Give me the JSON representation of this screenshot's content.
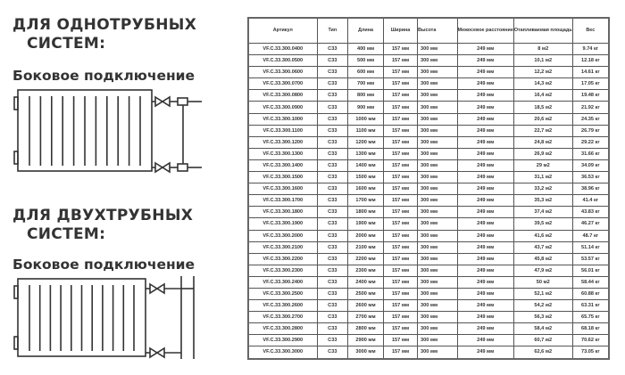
{
  "left": {
    "single_pipe": {
      "title_line1": "ДЛЯ ОДНОТРУБНЫХ",
      "title_line2": "СИСТЕМ:",
      "connection": "Боковое подключение"
    },
    "two_pipe": {
      "title_line1": "ДЛЯ ДВУХТРУБНЫХ",
      "title_line2": "СИСТЕМ:",
      "connection": "Боковое подключение"
    }
  },
  "table": {
    "headers": [
      "Артикул",
      "Тип",
      "Длина",
      "Ширина",
      "Высота",
      "Межосевое расстояние",
      "Отапливаемая площадь",
      "Вес"
    ],
    "rows": [
      [
        "VF.C.33.300.0400",
        "C33",
        "400 мм",
        "157 мм",
        "300 мм",
        "249 мм",
        "8 м2",
        "9.74 кг"
      ],
      [
        "VF.C.33.300.0500",
        "C33",
        "500 мм",
        "157 мм",
        "300 мм",
        "249 мм",
        "10,1 м2",
        "12.18 кг"
      ],
      [
        "VF.C.33.300.0600",
        "C33",
        "600 мм",
        "157 мм",
        "300 мм",
        "249 мм",
        "12,2 м2",
        "14.61 кг"
      ],
      [
        "VF.C.33.300.0700",
        "C33",
        "700 мм",
        "157 мм",
        "300 мм",
        "249 мм",
        "14,3 м2",
        "17.05 кг"
      ],
      [
        "VF.C.33.300.0800",
        "C33",
        "800 мм",
        "157 мм",
        "300 мм",
        "249 мм",
        "16,4 м2",
        "19.48 кг"
      ],
      [
        "VF.C.33.300.0900",
        "C33",
        "900 мм",
        "157 мм",
        "300 мм",
        "249 мм",
        "18,5 м2",
        "21.92 кг"
      ],
      [
        "VF.C.33.300.1000",
        "C33",
        "1000 мм",
        "157 мм",
        "300 мм",
        "249 мм",
        "20,6 м2",
        "24.35 кг"
      ],
      [
        "VF.C.33.300.1100",
        "C33",
        "1100 мм",
        "157 мм",
        "300 мм",
        "249 мм",
        "22,7 м2",
        "26.79 кг"
      ],
      [
        "VF.C.33.300.1200",
        "C33",
        "1200 мм",
        "157 мм",
        "300 мм",
        "249 мм",
        "24,8 м2",
        "29.22 кг"
      ],
      [
        "VF.C.33.300.1300",
        "C33",
        "1300 мм",
        "157 мм",
        "300 мм",
        "249 мм",
        "26,9 м2",
        "31.66 кг"
      ],
      [
        "VF.C.33.300.1400",
        "C33",
        "1400 мм",
        "157 мм",
        "300 мм",
        "249 мм",
        "29 м2",
        "34.09 кг"
      ],
      [
        "VF.C.33.300.1500",
        "C33",
        "1500 мм",
        "157 мм",
        "300 мм",
        "249 мм",
        "31,1 м2",
        "36.53 кг"
      ],
      [
        "VF.C.33.300.1600",
        "C33",
        "1600 мм",
        "157 мм",
        "300 мм",
        "249 мм",
        "33,2 м2",
        "38.96 кг"
      ],
      [
        "VF.C.33.300.1700",
        "C33",
        "1700 мм",
        "157 мм",
        "300 мм",
        "249 мм",
        "35,3 м2",
        "41.4 кг"
      ],
      [
        "VF.C.33.300.1800",
        "C33",
        "1800 мм",
        "157 мм",
        "300 мм",
        "249 мм",
        "37,4 м2",
        "43.83 кг"
      ],
      [
        "VF.C.33.300.1900",
        "C33",
        "1900 мм",
        "157 мм",
        "300 мм",
        "249 мм",
        "39,5 м2",
        "46.27 кг"
      ],
      [
        "VF.C.33.300.2000",
        "C33",
        "2000 мм",
        "157 мм",
        "300 мм",
        "249 мм",
        "41,6 м2",
        "48.7 кг"
      ],
      [
        "VF.C.33.300.2100",
        "C33",
        "2100 мм",
        "157 мм",
        "300 мм",
        "249 мм",
        "43,7 м2",
        "51.14 кг"
      ],
      [
        "VF.C.33.300.2200",
        "C33",
        "2200 мм",
        "157 мм",
        "300 мм",
        "249 мм",
        "45,8 м2",
        "53.57 кг"
      ],
      [
        "VF.C.33.300.2300",
        "C33",
        "2300 мм",
        "157 мм",
        "300 мм",
        "249 мм",
        "47,9 м2",
        "56.01 кг"
      ],
      [
        "VF.C.33.300.2400",
        "C33",
        "2400 мм",
        "157 мм",
        "300 мм",
        "249 мм",
        "50 м2",
        "58.44 кг"
      ],
      [
        "VF.C.33.300.2500",
        "C33",
        "2500 мм",
        "157 мм",
        "300 мм",
        "249 мм",
        "52,1 м2",
        "60.88 кг"
      ],
      [
        "VF.C.33.300.2600",
        "C33",
        "2600 мм",
        "157 мм",
        "300 мм",
        "249 мм",
        "54,2 м2",
        "63.31 кг"
      ],
      [
        "VF.C.33.300.2700",
        "C33",
        "2700 мм",
        "157 мм",
        "300 мм",
        "249 мм",
        "56,3 м2",
        "65.75 кг"
      ],
      [
        "VF.C.33.300.2800",
        "C33",
        "2800 мм",
        "157 мм",
        "300 мм",
        "249 мм",
        "58,4 м2",
        "68.18 кг"
      ],
      [
        "VF.C.33.300.2900",
        "C33",
        "2900 мм",
        "157 мм",
        "300 мм",
        "249 мм",
        "60,7 м2",
        "70.62 кг"
      ],
      [
        "VF.C.33.300.3000",
        "C33",
        "3000 мм",
        "157 мм",
        "300 мм",
        "249 мм",
        "62,6 м2",
        "73.05 кг"
      ]
    ]
  }
}
